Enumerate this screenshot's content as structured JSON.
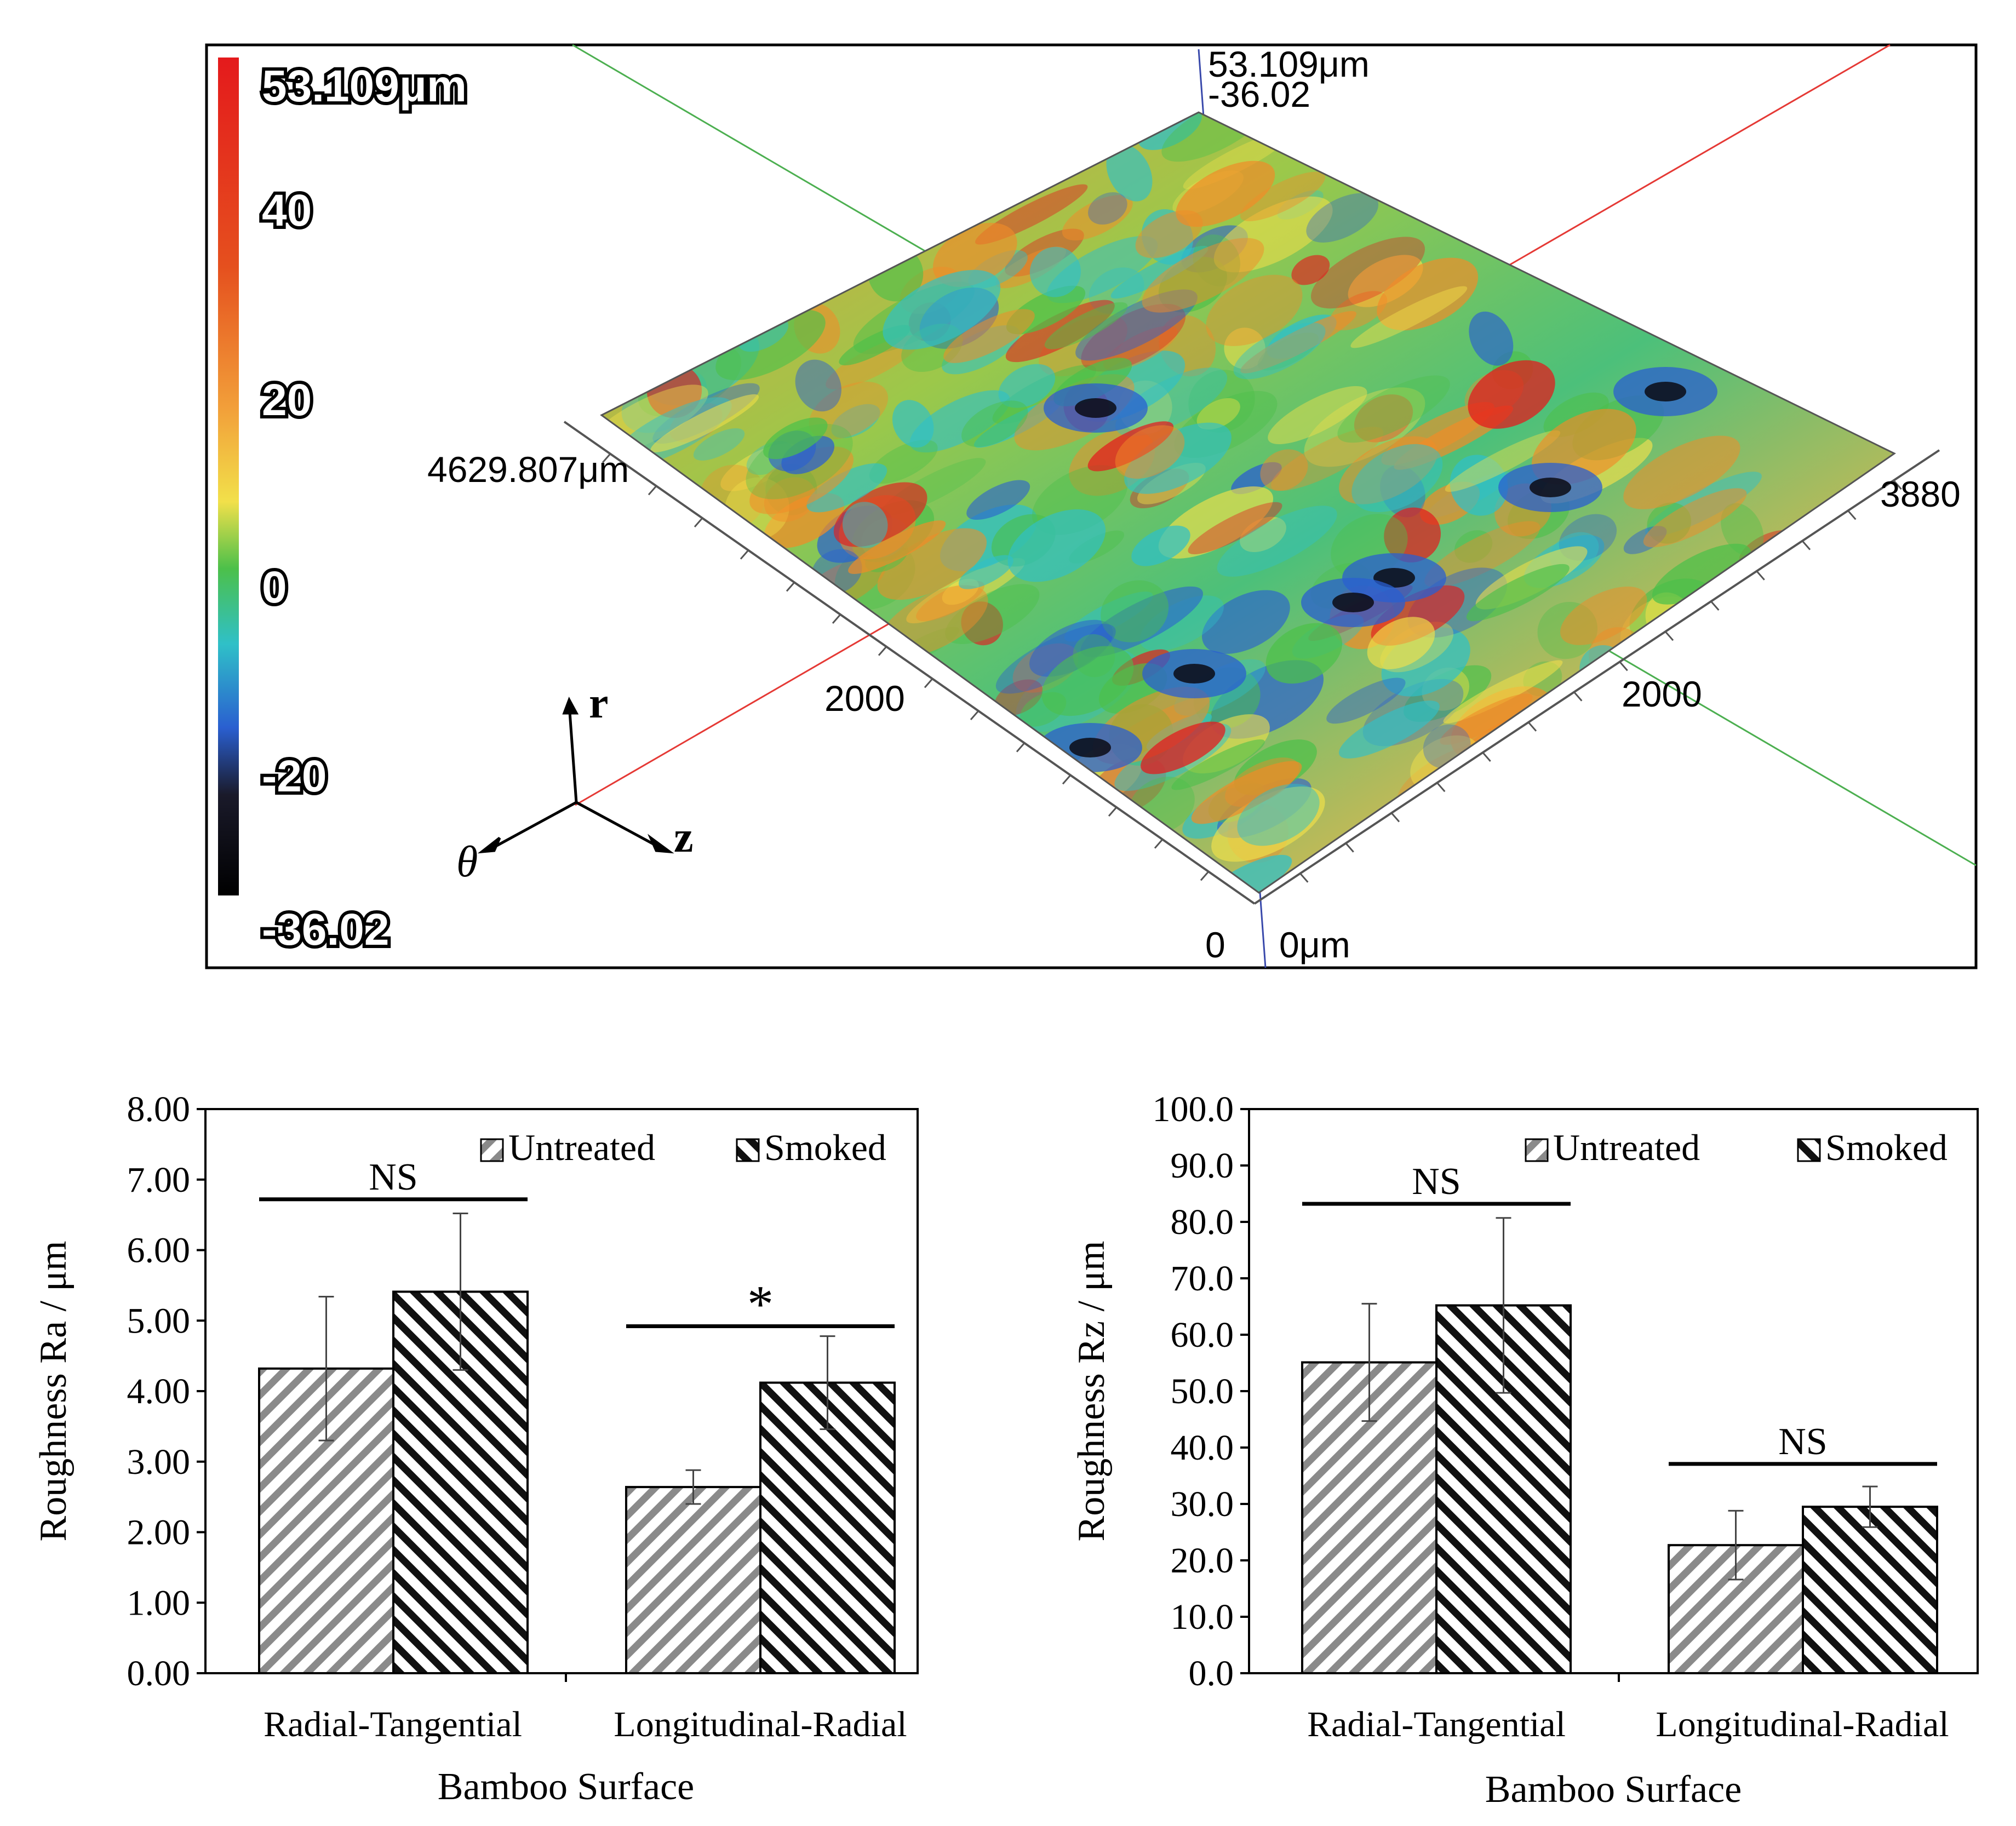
{
  "surface_map": {
    "colorbar": {
      "max_label": "53.109μm",
      "tick_labels": [
        "40",
        "20",
        "0",
        "-20"
      ],
      "min_label": "-36.02"
    },
    "axis_labels": {
      "z_top": "53.109μm",
      "z_bottom": "-36.02",
      "left_extent": "4629.807μm",
      "right_extent": "3880",
      "left_mid": "2000",
      "right_mid": "2000",
      "origin_x": "0",
      "origin_y": "0μm"
    },
    "orientation": {
      "r": "r",
      "theta": "θ",
      "z": "z"
    },
    "colors": {
      "red": "#e41a1c",
      "orange": "#f08c28",
      "yellow": "#f2e04a",
      "green": "#4cc04a",
      "cyan": "#2fc0c8",
      "blue": "#2a5fd0",
      "dark": "#0a0a14"
    }
  },
  "chart_data": [
    {
      "type": "bar",
      "title": "",
      "xlabel": "Bamboo Surface",
      "ylabel": "Roughness Ra / μm",
      "categories": [
        "Radial-Tangential",
        "Longitudinal-Radial"
      ],
      "series": [
        {
          "name": "Untreated",
          "values": [
            4.32,
            2.64
          ],
          "errors": [
            1.02,
            0.24
          ]
        },
        {
          "name": "Smoked",
          "values": [
            5.41,
            4.12
          ],
          "errors": [
            1.11,
            0.66
          ]
        }
      ],
      "ylim": [
        0,
        8
      ],
      "yticks": [
        "0.00",
        "1.00",
        "2.00",
        "3.00",
        "4.00",
        "5.00",
        "6.00",
        "7.00",
        "8.00"
      ],
      "significance": [
        {
          "label": "NS",
          "level": 6.72
        },
        {
          "label": "*",
          "level": 4.92
        }
      ]
    },
    {
      "type": "bar",
      "title": "",
      "xlabel": "Bamboo Surface",
      "ylabel": "Roughness Rz / μm",
      "categories": [
        "Radial-Tangential",
        "Longitudinal-Radial"
      ],
      "series": [
        {
          "name": "Untreated",
          "values": [
            55.1,
            22.7
          ],
          "errors": [
            10.4,
            6.1
          ]
        },
        {
          "name": "Smoked",
          "values": [
            65.2,
            29.5
          ],
          "errors": [
            15.5,
            3.6
          ]
        }
      ],
      "ylim": [
        0,
        100
      ],
      "yticks": [
        "0.0",
        "10.0",
        "20.0",
        "30.0",
        "40.0",
        "50.0",
        "60.0",
        "70.0",
        "80.0",
        "90.0",
        "100.0"
      ],
      "significance": [
        {
          "label": "NS",
          "level": 83.2
        },
        {
          "label": "NS",
          "level": 37.1
        }
      ]
    }
  ]
}
